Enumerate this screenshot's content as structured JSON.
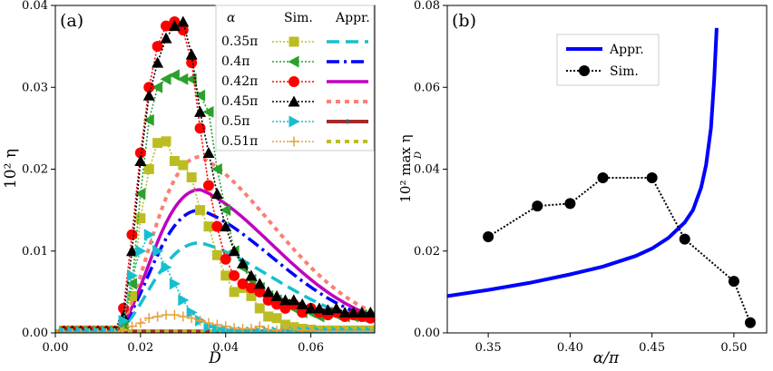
{
  "chart_data": [
    {
      "type": "line",
      "panel_label": "(a)",
      "xlabel": "D",
      "ylabel": "10² η",
      "xlim": [
        0,
        0.075
      ],
      "ylim": [
        0,
        0.04
      ],
      "xticks": [
        "0.00",
        "0.02",
        "0.04",
        "0.06"
      ],
      "yticks": [
        "0.00",
        "0.01",
        "0.02",
        "0.03",
        "0.04"
      ],
      "legend": {
        "placement": "top-right",
        "col_headers": [
          "α",
          "Sim.",
          "Appr."
        ],
        "rows": [
          "0.35π",
          "0.4π",
          "0.42π",
          "0.45π",
          "0.5π",
          "0.51π"
        ]
      },
      "series": [
        {
          "name": "Sim. 0.35π",
          "style": "square-dotted",
          "color": "#bcbd22",
          "x": [
            0.002,
            0.004,
            0.006,
            0.008,
            0.01,
            0.012,
            0.014,
            0.016,
            0.018,
            0.02,
            0.022,
            0.024,
            0.026,
            0.028,
            0.03,
            0.032,
            0.034,
            0.036,
            0.038,
            0.04,
            0.042,
            0.044,
            0.046,
            0.048,
            0.05,
            0.052,
            0.054,
            0.056,
            0.058,
            0.06,
            0.062,
            0.064,
            0.066,
            0.068,
            0.07,
            0.072,
            0.074
          ],
          "y": [
            0.0003,
            0.0003,
            0.0003,
            0.0003,
            0.0003,
            0.0003,
            0.0003,
            0.0008,
            0.0045,
            0.014,
            0.02,
            0.0232,
            0.0234,
            0.021,
            0.0205,
            0.019,
            0.015,
            0.013,
            0.0095,
            0.007,
            0.005,
            0.0055,
            0.0045,
            0.003,
            0.002,
            0.0018,
            0.001,
            0.0007,
            0.0005,
            0.0004,
            0.0003,
            0.0003,
            0.0003,
            0.0003,
            0.0003,
            0.0003,
            0.0003
          ]
        },
        {
          "name": "Sim. 0.4π",
          "style": "triangle-left-dotted",
          "color": "#2ca02c",
          "x": [
            0.002,
            0.004,
            0.006,
            0.008,
            0.01,
            0.012,
            0.014,
            0.016,
            0.018,
            0.02,
            0.022,
            0.024,
            0.026,
            0.028,
            0.03,
            0.032,
            0.034,
            0.036,
            0.038,
            0.04,
            0.042,
            0.044,
            0.046,
            0.048,
            0.05,
            0.052,
            0.054,
            0.056,
            0.058,
            0.06,
            0.062,
            0.064,
            0.066,
            0.068,
            0.07,
            0.072,
            0.074
          ],
          "y": [
            0.0002,
            0.0002,
            0.0002,
            0.0002,
            0.0002,
            0.0002,
            0.0002,
            0.001,
            0.006,
            0.017,
            0.026,
            0.03,
            0.031,
            0.0315,
            0.031,
            0.031,
            0.029,
            0.027,
            0.02,
            0.015,
            0.01,
            0.008,
            0.0065,
            0.0055,
            0.0045,
            0.004,
            0.0035,
            0.003,
            0.0025,
            0.0025,
            0.002,
            0.0025,
            0.0022,
            0.002,
            0.002,
            0.0022,
            0.002
          ]
        },
        {
          "name": "Sim. 0.42π",
          "style": "circle-dotted",
          "color": "#ff0000",
          "x": [
            0.002,
            0.004,
            0.006,
            0.008,
            0.01,
            0.012,
            0.014,
            0.016,
            0.018,
            0.02,
            0.022,
            0.024,
            0.026,
            0.028,
            0.03,
            0.032,
            0.034,
            0.036,
            0.038,
            0.04,
            0.042,
            0.044,
            0.046,
            0.048,
            0.05,
            0.052,
            0.054,
            0.056,
            0.058,
            0.06,
            0.062,
            0.064,
            0.066,
            0.068,
            0.07,
            0.072,
            0.074
          ],
          "y": [
            0.0002,
            0.0002,
            0.0002,
            0.0002,
            0.0002,
            0.0002,
            0.0002,
            0.003,
            0.012,
            0.022,
            0.03,
            0.035,
            0.0375,
            0.038,
            0.037,
            0.033,
            0.025,
            0.018,
            0.013,
            0.009,
            0.007,
            0.006,
            0.0055,
            0.005,
            0.004,
            0.0035,
            0.003,
            0.0035,
            0.0025,
            0.003,
            0.0025,
            0.0022,
            0.0025,
            0.002,
            0.0022,
            0.002,
            0.0018
          ]
        },
        {
          "name": "Sim. 0.45π",
          "style": "triangle-up-dotted",
          "color": "#000000",
          "x": [
            0.002,
            0.004,
            0.006,
            0.008,
            0.01,
            0.012,
            0.014,
            0.016,
            0.018,
            0.02,
            0.022,
            0.024,
            0.026,
            0.028,
            0.03,
            0.032,
            0.034,
            0.036,
            0.038,
            0.04,
            0.042,
            0.044,
            0.046,
            0.048,
            0.05,
            0.052,
            0.054,
            0.056,
            0.058,
            0.06,
            0.062,
            0.064,
            0.066,
            0.068,
            0.07,
            0.072,
            0.074
          ],
          "y": [
            0.0002,
            0.0002,
            0.0002,
            0.0002,
            0.0002,
            0.0002,
            0.0002,
            0.002,
            0.01,
            0.021,
            0.029,
            0.033,
            0.036,
            0.0375,
            0.038,
            0.034,
            0.027,
            0.022,
            0.017,
            0.013,
            0.01,
            0.0085,
            0.007,
            0.006,
            0.005,
            0.0045,
            0.004,
            0.004,
            0.0035,
            0.003,
            0.003,
            0.0028,
            0.003,
            0.0025,
            0.0025,
            0.0025,
            0.0025
          ]
        },
        {
          "name": "Sim. 0.5π",
          "style": "triangle-right-dotted",
          "color": "#17becf",
          "x": [
            0.002,
            0.004,
            0.006,
            0.008,
            0.01,
            0.012,
            0.014,
            0.016,
            0.018,
            0.02,
            0.022,
            0.024,
            0.026,
            0.028,
            0.03,
            0.032,
            0.034,
            0.036,
            0.038,
            0.04,
            0.042,
            0.044,
            0.046,
            0.048,
            0.05,
            0.052,
            0.054,
            0.056,
            0.058,
            0.06,
            0.062,
            0.064,
            0.066,
            0.068,
            0.07,
            0.072,
            0.074
          ],
          "y": [
            0.0001,
            0.0001,
            0.0001,
            0.0001,
            0.0001,
            0.0001,
            0.0001,
            0.0015,
            0.007,
            0.01,
            0.012,
            0.01,
            0.008,
            0.006,
            0.004,
            0.0025,
            0.0015,
            0.0008,
            0.0005,
            0.0003,
            0.0002,
            0.0001,
            0.0001,
            0.0001,
            0.0001,
            0.0001,
            0.0001,
            0.0001,
            0.0001,
            0.0001,
            0.0001,
            0.0001,
            0.0001,
            0.0001,
            0.0001,
            0.0001,
            0.0001
          ]
        },
        {
          "name": "Sim. 0.51π",
          "style": "plus-dotted",
          "color": "#e6a23c",
          "x": [
            0.002,
            0.004,
            0.006,
            0.008,
            0.01,
            0.012,
            0.014,
            0.016,
            0.018,
            0.02,
            0.022,
            0.024,
            0.026,
            0.028,
            0.03,
            0.032,
            0.034,
            0.036,
            0.038,
            0.04,
            0.042,
            0.044,
            0.046,
            0.048,
            0.05,
            0.052,
            0.054,
            0.056,
            0.058,
            0.06,
            0.062,
            0.064,
            0.066,
            0.068,
            0.07,
            0.072,
            0.074
          ],
          "y": [
            0.0,
            0.0,
            0.0,
            0.0,
            0.0,
            0.0,
            0.0,
            0.0003,
            0.0008,
            0.0012,
            0.0018,
            0.002,
            0.0022,
            0.0022,
            0.002,
            0.0018,
            0.0015,
            0.0012,
            0.001,
            0.0008,
            0.0006,
            0.0005,
            0.0005,
            0.0008,
            0.0004,
            0.0003,
            0.0006,
            0.0004,
            0.0003,
            0.0003,
            0.0002,
            0.0002,
            0.0002,
            0.0002,
            0.0002,
            0.0002,
            0.0002
          ]
        },
        {
          "name": "Appr. 0.35π",
          "style": "dashed",
          "color": "#17becf",
          "Dpeak": 0.034,
          "peak": 0.011
        },
        {
          "name": "Appr. 0.4π",
          "style": "dashdot",
          "color": "#0000ff",
          "Dpeak": 0.034,
          "peak": 0.015
        },
        {
          "name": "Appr. 0.42π",
          "style": "solid",
          "color": "#bf00bf",
          "Dpeak": 0.034,
          "peak": 0.0175
        },
        {
          "name": "Appr. 0.45π",
          "style": "dotted-thick",
          "color": "#fa8072",
          "Dpeak": 0.034,
          "peak": 0.0215
        },
        {
          "name": "Appr. 0.5π",
          "style": "solid-point",
          "color": "#a52a2a",
          "Dpeak": null,
          "peak": 0.0
        },
        {
          "name": "Appr. 0.51π",
          "style": "dotted-thick",
          "color": "#bcbd22",
          "Dpeak": null,
          "peak": 0.0
        }
      ]
    },
    {
      "type": "line",
      "panel_label": "(b)",
      "xlabel": "α/π",
      "ylabel": "10² max η",
      "ylabel_sub": "D",
      "xlim": [
        0.325,
        0.52
      ],
      "ylim": [
        0,
        0.08
      ],
      "xticks": [
        "0.35",
        "0.40",
        "0.45",
        "0.50"
      ],
      "yticks": [
        "0.00",
        "0.02",
        "0.04",
        "0.06",
        "0.08"
      ],
      "legend": {
        "placement": "top-left",
        "entries": [
          "Appr.",
          "Sim."
        ]
      },
      "series": [
        {
          "name": "Appr.",
          "color": "#0000ff",
          "x": [
            0.325,
            0.35,
            0.375,
            0.4,
            0.42,
            0.44,
            0.45,
            0.46,
            0.47,
            0.475,
            0.48,
            0.483,
            0.486,
            0.488,
            0.4895
          ],
          "y": [
            0.009,
            0.0105,
            0.0122,
            0.0143,
            0.0162,
            0.0188,
            0.0206,
            0.0232,
            0.027,
            0.03,
            0.0355,
            0.041,
            0.05,
            0.062,
            0.0745
          ]
        },
        {
          "name": "Sim.",
          "color": "#000000",
          "x": [
            0.35,
            0.38,
            0.4,
            0.42,
            0.45,
            0.47,
            0.5,
            0.51
          ],
          "y": [
            0.0235,
            0.031,
            0.0316,
            0.0379,
            0.0379,
            0.0229,
            0.0126,
            0.0025
          ]
        }
      ]
    }
  ]
}
